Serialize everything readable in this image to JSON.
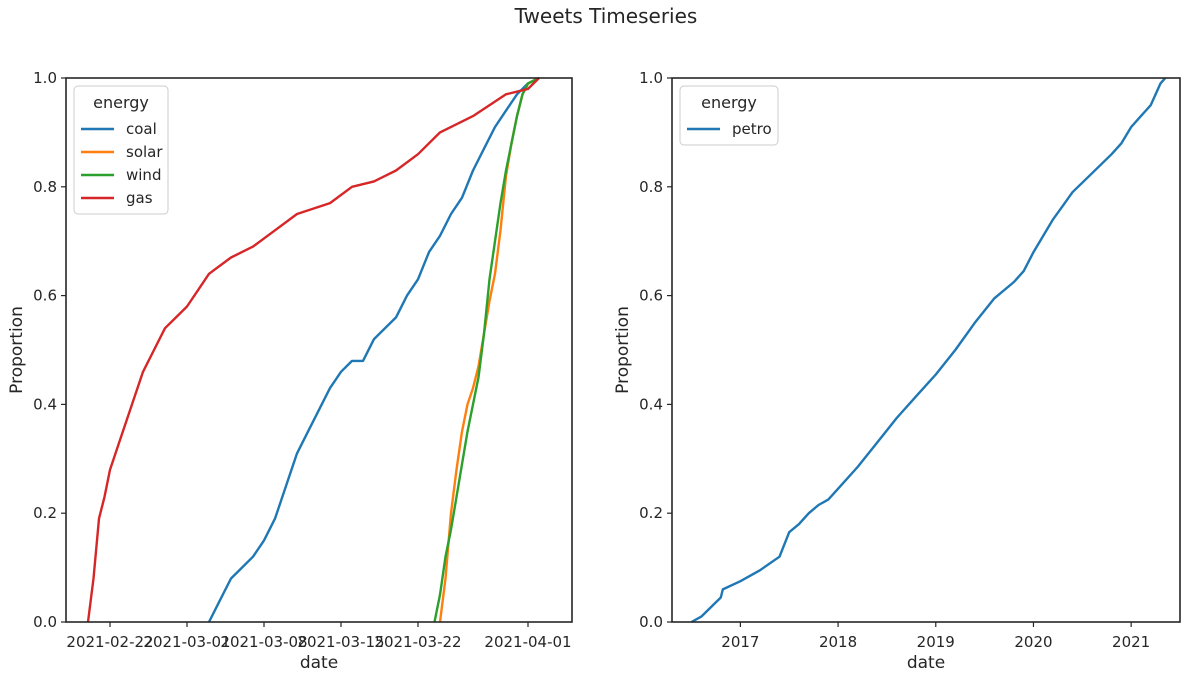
{
  "figure": {
    "title": "Tweets Timeseries"
  },
  "colors": {
    "coal": "#1f77b4",
    "solar": "#ff7f0e",
    "wind": "#2ca02c",
    "gas": "#d62728",
    "petro": "#1f77b4",
    "axis": "#262626"
  },
  "chart_data": [
    {
      "type": "line",
      "title": "",
      "xlabel": "date",
      "ylabel": "Proportion",
      "x_type": "date",
      "xlim": [
        "2021-02-18",
        "2021-04-05"
      ],
      "ylim": [
        0,
        1
      ],
      "grid": false,
      "legend_title": "energy",
      "legend_position": "top-left",
      "xticks": [
        "2021-02-22",
        "2021-03-01",
        "2021-03-08",
        "2021-03-15",
        "2021-03-22",
        "2021-04-01"
      ],
      "yticks": [
        "0.0",
        "0.2",
        "0.4",
        "0.6",
        "0.8",
        "1.0"
      ],
      "series": [
        {
          "name": "coal",
          "color": "#1f77b4",
          "points": [
            [
              "2021-03-03",
              0.0
            ],
            [
              "2021-03-04",
              0.04
            ],
            [
              "2021-03-05",
              0.08
            ],
            [
              "2021-03-06",
              0.1
            ],
            [
              "2021-03-07",
              0.12
            ],
            [
              "2021-03-08",
              0.15
            ],
            [
              "2021-03-09",
              0.19
            ],
            [
              "2021-03-10",
              0.25
            ],
            [
              "2021-03-11",
              0.31
            ],
            [
              "2021-03-12",
              0.35
            ],
            [
              "2021-03-13",
              0.39
            ],
            [
              "2021-03-14",
              0.43
            ],
            [
              "2021-03-15",
              0.46
            ],
            [
              "2021-03-16",
              0.48
            ],
            [
              "2021-03-17",
              0.48
            ],
            [
              "2021-03-18",
              0.52
            ],
            [
              "2021-03-20",
              0.56
            ],
            [
              "2021-03-21",
              0.6
            ],
            [
              "2021-03-22",
              0.63
            ],
            [
              "2021-03-23",
              0.68
            ],
            [
              "2021-03-24",
              0.71
            ],
            [
              "2021-03-25",
              0.75
            ],
            [
              "2021-03-26",
              0.78
            ],
            [
              "2021-03-27",
              0.83
            ],
            [
              "2021-03-28",
              0.87
            ],
            [
              "2021-03-29",
              0.91
            ],
            [
              "2021-03-30",
              0.94
            ],
            [
              "2021-03-31",
              0.97
            ],
            [
              "2021-04-01",
              0.99
            ],
            [
              "2021-04-02",
              1.0
            ]
          ]
        },
        {
          "name": "solar",
          "color": "#ff7f0e",
          "points": [
            [
              "2021-03-24",
              0.0
            ],
            [
              "2021-03-24T12:00",
              0.08
            ],
            [
              "2021-03-25",
              0.2
            ],
            [
              "2021-03-25T12:00",
              0.28
            ],
            [
              "2021-03-26",
              0.35
            ],
            [
              "2021-03-26T12:00",
              0.4
            ],
            [
              "2021-03-27",
              0.43
            ],
            [
              "2021-03-27T12:00",
              0.47
            ],
            [
              "2021-03-28",
              0.53
            ],
            [
              "2021-03-28T12:00",
              0.59
            ],
            [
              "2021-03-29",
              0.64
            ],
            [
              "2021-03-29T12:00",
              0.72
            ],
            [
              "2021-03-30",
              0.82
            ],
            [
              "2021-03-30T12:00",
              0.88
            ],
            [
              "2021-03-31",
              0.93
            ],
            [
              "2021-03-31T12:00",
              0.97
            ],
            [
              "2021-04-01",
              0.99
            ],
            [
              "2021-04-02",
              1.0
            ]
          ]
        },
        {
          "name": "wind",
          "color": "#2ca02c",
          "points": [
            [
              "2021-03-23T12:00",
              0.0
            ],
            [
              "2021-03-24",
              0.05
            ],
            [
              "2021-03-24T12:00",
              0.12
            ],
            [
              "2021-03-25",
              0.17
            ],
            [
              "2021-03-25T12:00",
              0.23
            ],
            [
              "2021-03-26",
              0.29
            ],
            [
              "2021-03-26T12:00",
              0.35
            ],
            [
              "2021-03-27",
              0.4
            ],
            [
              "2021-03-27T12:00",
              0.45
            ],
            [
              "2021-03-28",
              0.53
            ],
            [
              "2021-03-28T12:00",
              0.63
            ],
            [
              "2021-03-29",
              0.7
            ],
            [
              "2021-03-29T12:00",
              0.77
            ],
            [
              "2021-03-30",
              0.83
            ],
            [
              "2021-03-30T12:00",
              0.88
            ],
            [
              "2021-03-31",
              0.93
            ],
            [
              "2021-03-31T12:00",
              0.97
            ],
            [
              "2021-04-01",
              0.99
            ],
            [
              "2021-04-02",
              1.0
            ]
          ]
        },
        {
          "name": "gas",
          "color": "#d62728",
          "points": [
            [
              "2021-02-20",
              0.0
            ],
            [
              "2021-02-20T12:00",
              0.08
            ],
            [
              "2021-02-21",
              0.19
            ],
            [
              "2021-02-21T12:00",
              0.23
            ],
            [
              "2021-02-22",
              0.28
            ],
            [
              "2021-02-23",
              0.34
            ],
            [
              "2021-02-24",
              0.4
            ],
            [
              "2021-02-25",
              0.46
            ],
            [
              "2021-02-26",
              0.5
            ],
            [
              "2021-02-27",
              0.54
            ],
            [
              "2021-02-28",
              0.56
            ],
            [
              "2021-03-01",
              0.58
            ],
            [
              "2021-03-02",
              0.61
            ],
            [
              "2021-03-03",
              0.64
            ],
            [
              "2021-03-05",
              0.67
            ],
            [
              "2021-03-07",
              0.69
            ],
            [
              "2021-03-09",
              0.72
            ],
            [
              "2021-03-11",
              0.75
            ],
            [
              "2021-03-14",
              0.77
            ],
            [
              "2021-03-16",
              0.8
            ],
            [
              "2021-03-18",
              0.81
            ],
            [
              "2021-03-20",
              0.83
            ],
            [
              "2021-03-22",
              0.86
            ],
            [
              "2021-03-24",
              0.9
            ],
            [
              "2021-03-27",
              0.93
            ],
            [
              "2021-03-30",
              0.97
            ],
            [
              "2021-04-01",
              0.98
            ],
            [
              "2021-04-02",
              1.0
            ]
          ]
        }
      ]
    },
    {
      "type": "line",
      "title": "",
      "xlabel": "date",
      "ylabel": "Proportion",
      "x_type": "year",
      "xlim": [
        2016.3,
        2021.5
      ],
      "ylim": [
        0,
        1
      ],
      "grid": false,
      "legend_title": "energy",
      "legend_position": "top-left",
      "xticks": [
        "2017",
        "2018",
        "2019",
        "2020",
        "2021"
      ],
      "yticks": [
        "0.0",
        "0.2",
        "0.4",
        "0.6",
        "0.8",
        "1.0"
      ],
      "series": [
        {
          "name": "petro",
          "color": "#1f77b4",
          "points": [
            [
              2016.5,
              0.0
            ],
            [
              2016.6,
              0.01
            ],
            [
              2016.8,
              0.045
            ],
            [
              2016.82,
              0.06
            ],
            [
              2017.0,
              0.075
            ],
            [
              2017.2,
              0.095
            ],
            [
              2017.4,
              0.12
            ],
            [
              2017.5,
              0.165
            ],
            [
              2017.6,
              0.18
            ],
            [
              2017.7,
              0.2
            ],
            [
              2017.8,
              0.215
            ],
            [
              2017.9,
              0.225
            ],
            [
              2018.0,
              0.245
            ],
            [
              2018.2,
              0.285
            ],
            [
              2018.4,
              0.33
            ],
            [
              2018.6,
              0.375
            ],
            [
              2018.8,
              0.415
            ],
            [
              2019.0,
              0.455
            ],
            [
              2019.2,
              0.5
            ],
            [
              2019.4,
              0.55
            ],
            [
              2019.6,
              0.595
            ],
            [
              2019.8,
              0.625
            ],
            [
              2019.9,
              0.645
            ],
            [
              2020.0,
              0.68
            ],
            [
              2020.2,
              0.74
            ],
            [
              2020.3,
              0.765
            ],
            [
              2020.4,
              0.79
            ],
            [
              2020.6,
              0.825
            ],
            [
              2020.8,
              0.86
            ],
            [
              2020.9,
              0.88
            ],
            [
              2021.0,
              0.91
            ],
            [
              2021.1,
              0.93
            ],
            [
              2021.2,
              0.95
            ],
            [
              2021.3,
              0.99
            ],
            [
              2021.35,
              1.0
            ]
          ]
        }
      ]
    }
  ]
}
